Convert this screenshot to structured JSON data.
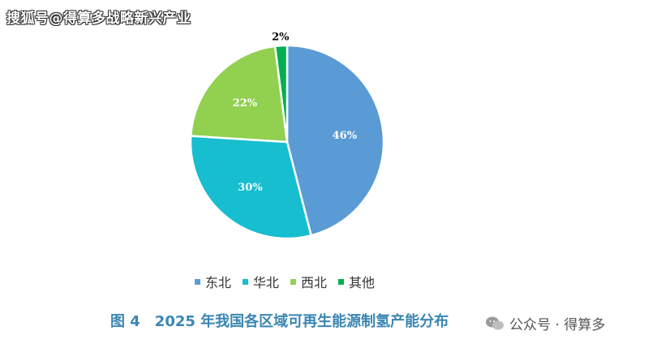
{
  "watermark": "搜狐号@得算多战略新兴产业",
  "caption": "图 4　2025 年我国各区域可再生能源制氢产能分布",
  "wechat": {
    "label": "公众号 · 得算多"
  },
  "chart_data": {
    "type": "pie",
    "title": "",
    "slices": [
      {
        "label": "东北",
        "value": 46,
        "text": "46%",
        "color": "#5b9bd5"
      },
      {
        "label": "华北",
        "value": 30,
        "text": "30%",
        "color": "#17becf"
      },
      {
        "label": "西北",
        "value": 22,
        "text": "22%",
        "color": "#92d050"
      },
      {
        "label": "其他",
        "value": 2,
        "text": "2%",
        "color": "#00b050"
      }
    ],
    "legend_position": "bottom"
  }
}
